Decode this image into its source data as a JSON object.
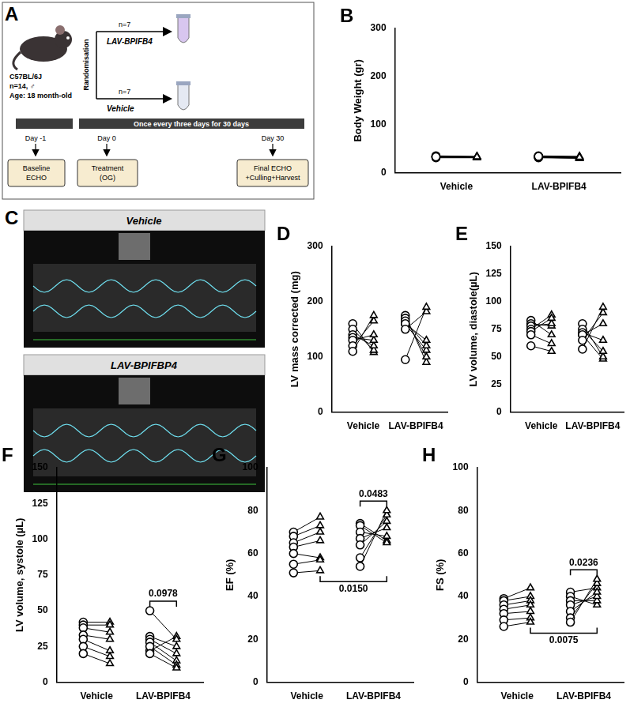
{
  "diagram": {
    "panel_label": "A",
    "mouse": {
      "strain": "C57BL/6J",
      "n": "n=14, ♂",
      "age": "Age: 18 month-old"
    },
    "randomisation": "Randomisation",
    "arms": [
      {
        "n": "n=7",
        "name": "LAV-BPIFB4"
      },
      {
        "n": "n=7",
        "name": "Vehicle"
      }
    ],
    "timeline": {
      "treatment": "Once every three days for 30 days",
      "days": [
        "Day -1",
        "Day 0",
        "Day 30"
      ],
      "boxes": [
        [
          "Baseline",
          "ECHO"
        ],
        [
          "Treatment",
          "(OG)"
        ],
        [
          "Final ECHO",
          "+Culling+Harvest"
        ]
      ]
    }
  },
  "images": {
    "panel_label": "C",
    "panels": [
      {
        "title": "Vehicle"
      },
      {
        "title": "LAV-BPIFBP4"
      }
    ]
  },
  "chart_data": [
    {
      "type": "scatter",
      "panel_label": "B",
      "y_label": "Body Weight (gr)",
      "categories": [
        "Vehicle",
        "LAV-BPIFB4"
      ],
      "ylim": [
        0,
        300
      ],
      "yticks": [
        0,
        100,
        200,
        300
      ],
      "color": "#000000",
      "series": [
        {
          "marker": "circle",
          "values": [
            [
              33,
              34,
              35,
              32,
              33,
              31,
              34
            ],
            [
              34,
              33,
              35,
              32,
              33,
              31,
              34
            ]
          ]
        },
        {
          "marker": "triangle",
          "values": [
            [
              33,
              33,
              34,
              32,
              32,
              31,
              33
            ],
            [
              32,
              31,
              34,
              30,
              31,
              30,
              33
            ]
          ]
        }
      ],
      "comparisons": []
    },
    {
      "type": "scatter",
      "panel_label": "D",
      "y_label": "LV mass corrected (mg)",
      "categories": [
        "Vehicle",
        "LAV-BPIFB4"
      ],
      "ylim": [
        0,
        300
      ],
      "yticks": [
        0,
        100,
        200,
        300
      ],
      "color": "#000000",
      "series": [
        {
          "marker": "circle",
          "values": [
            [
              110,
              120,
              130,
              135,
              140,
              150,
              160
            ],
            [
              95,
              150,
              160,
              165,
              170,
              175,
              160
            ]
          ]
        },
        {
          "marker": "triangle",
          "values": [
            [
              175,
              165,
              140,
              130,
              120,
              112,
              108
            ],
            [
              190,
              182,
              130,
              120,
              100,
              90,
              112
            ]
          ]
        }
      ],
      "comparisons": []
    },
    {
      "type": "scatter",
      "panel_label": "E",
      "y_label": "LV volume, diastole(µL)",
      "categories": [
        "Vehicle",
        "LAV-BPIFB4"
      ],
      "ylim": [
        0,
        150
      ],
      "yticks": [
        0,
        25,
        50,
        75,
        100,
        125,
        150
      ],
      "color": "#000000",
      "series": [
        {
          "marker": "circle",
          "values": [
            [
              60,
              70,
              73,
              75,
              78,
              80,
              83
            ],
            [
              57,
              65,
              70,
              72,
              75,
              80,
              70
            ]
          ]
        },
        {
          "marker": "triangle",
          "values": [
            [
              55,
              62,
              85,
              88,
              80,
              78,
              70
            ],
            [
              95,
              90,
              80,
              65,
              55,
              50,
              48
            ]
          ]
        }
      ],
      "comparisons": []
    },
    {
      "type": "scatter",
      "panel_label": "F",
      "y_label": "LV volume, systole (µL)",
      "categories": [
        "Vehicle",
        "LAV-BPIFB4"
      ],
      "ylim": [
        0,
        150
      ],
      "yticks": [
        0,
        25,
        50,
        75,
        100,
        125,
        150
      ],
      "color": "#000000",
      "series": [
        {
          "marker": "circle",
          "values": [
            [
              20,
              25,
              30,
              33,
              38,
              40,
              42
            ],
            [
              50,
              20,
              25,
              28,
              30,
              32,
              22
            ]
          ]
        },
        {
          "marker": "triangle",
          "values": [
            [
              13,
              18,
              22,
              30,
              35,
              40,
              42
            ],
            [
              30,
              10,
              12,
              15,
              20,
              25,
              32
            ]
          ]
        }
      ],
      "comparisons": [
        {
          "categories": [
            "LAV-BPIFB4"
          ],
          "label": "0.0978"
        }
      ]
    },
    {
      "type": "scatter",
      "panel_label": "G",
      "y_label": "EF (%)",
      "categories": [
        "Vehicle",
        "LAV-BPIFB4"
      ],
      "ylim": [
        0,
        100
      ],
      "yticks": [
        0,
        20,
        40,
        60,
        80,
        100
      ],
      "color": "#000000",
      "series": [
        {
          "marker": "circle",
          "values": [
            [
              51,
              55,
              60,
              63,
              65,
              68,
              70
            ],
            [
              54,
              58,
              64,
              67,
              70,
              73,
              74
            ]
          ]
        },
        {
          "marker": "triangle",
          "values": [
            [
              52,
              57,
              58,
              66,
              70,
              73,
              77
            ],
            [
              80,
              78,
              75,
              72,
              68,
              65,
              66
            ]
          ]
        }
      ],
      "comparisons": [
        {
          "categories": [
            "LAV-BPIFB4"
          ],
          "label": "0.0483"
        },
        {
          "categories": [
            "Vehicle",
            "LAV-BPIFB4"
          ],
          "label": "0.0150"
        }
      ]
    },
    {
      "type": "scatter",
      "panel_label": "H",
      "y_label": "FS (%)",
      "categories": [
        "Vehicle",
        "LAV-BPIFB4"
      ],
      "ylim": [
        0,
        100
      ],
      "yticks": [
        0,
        20,
        40,
        60,
        80,
        100
      ],
      "color": "#000000",
      "series": [
        {
          "marker": "circle",
          "values": [
            [
              26,
              29,
              32,
              34,
              36,
              38,
              39
            ],
            [
              28,
              30,
              33,
              36,
              38,
              40,
              42
            ]
          ]
        },
        {
          "marker": "triangle",
          "values": [
            [
              28,
              30,
              33,
              36,
              38,
              40,
              44
            ],
            [
              48,
              46,
              42,
              40,
              38,
              36,
              44
            ]
          ]
        }
      ],
      "comparisons": [
        {
          "categories": [
            "LAV-BPIFB4"
          ],
          "label": "0.0236"
        },
        {
          "categories": [
            "Vehicle",
            "LAV-BPIFB4"
          ],
          "label": "0.0075"
        }
      ]
    }
  ]
}
